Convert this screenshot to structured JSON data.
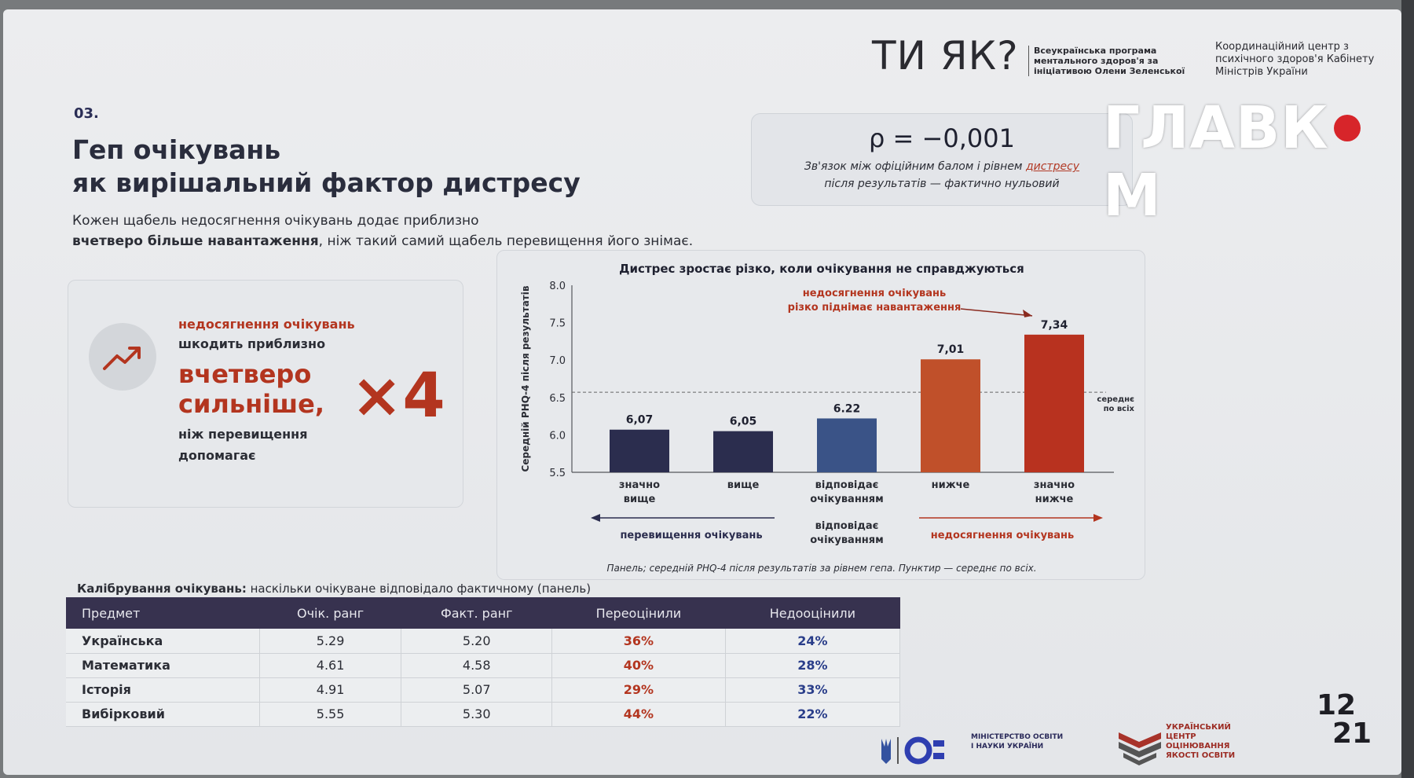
{
  "branding": {
    "tiyak_logo": "ТИ ЯК?",
    "tiyak_sub": "Всеукраїнська програма ментального здоров'я за ініціативою Олени Зеленської",
    "coord_center": "Координаційний центр з психічного здоров'я Кабінету Міністрів України",
    "watermark": "ГЛАВКОМ"
  },
  "header": {
    "section_number": "03.",
    "title_line1": "Геп очікувань",
    "title_line2": "як вирішальний фактор дистресу",
    "subtitle_line1": "Кожен щабель недосягнення очікувань додає приблизно",
    "subtitle_line2_bold": "вчетверо більше навантаження",
    "subtitle_line2_rest": ", ніж такий самий щабель перевищення його знімає."
  },
  "rho": {
    "value": "ρ = −0,001",
    "note_part1": "Зв'язок між офіційним балом і рівнем ",
    "note_highlight": "дистресу",
    "note_part2": "після результатів — фактично нульовий"
  },
  "left_card": {
    "line1": "недосягнення очікувань",
    "line2": "шкодить приблизно",
    "big_line1": "вчетверо",
    "big_line2": "сильніше,",
    "line3a": "ніж перевищення",
    "line3b": "допомагає",
    "multiplier": "×4",
    "icon": "trend-up-icon"
  },
  "chart_data": {
    "type": "bar",
    "title": "Дистрес зростає різко, коли очікування не справджуються",
    "ylabel": "Середній PHQ-4 після результатів",
    "ylim": [
      5.5,
      8.0
    ],
    "yticks": [
      "5.5",
      "6.0",
      "6.5",
      "7.0",
      "7.5",
      "8.0"
    ],
    "categories": [
      [
        "значно",
        "вище"
      ],
      [
        "вище"
      ],
      [
        "відповідає",
        "очікуванням"
      ],
      [
        "нижче"
      ],
      [
        "значно",
        "нижче"
      ]
    ],
    "values": [
      6.07,
      6.05,
      6.22,
      7.01,
      7.34
    ],
    "value_labels": [
      "6,07",
      "6,05",
      "6.22",
      "7,01",
      "7,34"
    ],
    "colors": [
      "#2b2d4e",
      "#2b2d4e",
      "#3a5387",
      "#c0502a",
      "#b8321f"
    ],
    "mean_line": 6.57,
    "mean_label": [
      "середнє",
      "по всіх"
    ],
    "annotation": [
      "недосягнення очікувань",
      "різко піднімає навантаження"
    ],
    "arrow_left_label": "перевищення очікувань",
    "arrow_center_label": [
      "відповідає",
      "очікуванням"
    ],
    "arrow_right_label": "недосягнення очікувань",
    "note": "Панель; середній PHQ-4 після результатів за рівнем гепа. Пунктир — середнє по всіх."
  },
  "table": {
    "caption_bold": "Калібрування очікувань:",
    "caption_rest": " наскільки очікуване відповідало фактичному (панель)",
    "headers": [
      "Предмет",
      "Очік. ранг",
      "Факт. ранг",
      "Переоцінили",
      "Недооцінили"
    ],
    "rows": [
      [
        "Українська",
        "5.29",
        "5.20",
        "36%",
        "24%"
      ],
      [
        "Математика",
        "4.61",
        "4.58",
        "40%",
        "28%"
      ],
      [
        "Історія",
        "4.91",
        "5.07",
        "29%",
        "33%"
      ],
      [
        "Вибірковий",
        "5.55",
        "5.30",
        "44%",
        "22%"
      ]
    ]
  },
  "footer": {
    "mon": "МІНІСТЕРСТВО ОСВІТИ І НАУКИ УКРАЇНИ",
    "ucoyo": "УКРАЇНСЬКИЙ ЦЕНТР ОЦІНЮВАННЯ ЯКОСТІ ОСВІТИ",
    "badge_top": "12",
    "badge_bottom": "21"
  }
}
